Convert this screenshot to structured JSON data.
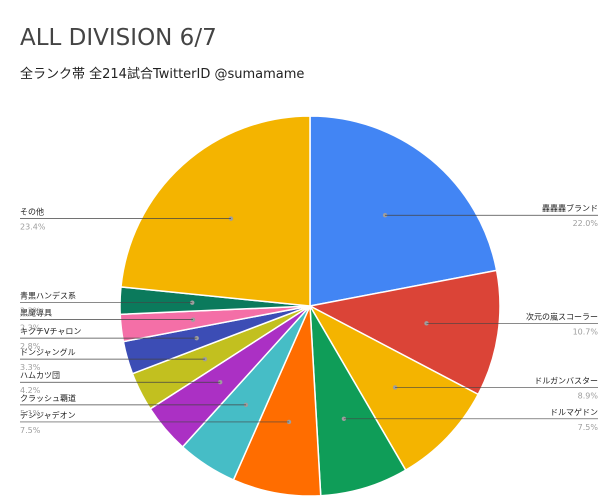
{
  "chart_data": {
    "type": "pie",
    "title": "ALL DIVISION 6/7",
    "subtitle": "全ランク帯 全214試合TwitterID @sumamame",
    "slices": [
      {
        "label": "轟轟轟ブランド",
        "value": 22.0,
        "value_label": "22.0%",
        "color": "#4285f4"
      },
      {
        "label": "次元の嵐スコーラー",
        "value": 10.7,
        "value_label": "10.7%",
        "color": "#db4437"
      },
      {
        "label": "ドルガンバスター",
        "value": 8.9,
        "value_label": "8.9%",
        "color": "#f4b400"
      },
      {
        "label": "ドルマゲドン",
        "value": 7.5,
        "value_label": "7.5%",
        "color": "#0f9d58"
      },
      {
        "label": "デンジャデオン",
        "value": 7.5,
        "value_label": "7.5%",
        "color": "#ff6d00"
      },
      {
        "label": "クラッシュ覇道",
        "value": 5.1,
        "value_label": "5.1%",
        "color": "#46bdc6"
      },
      {
        "label": "ハムカツ団",
        "value": 4.2,
        "value_label": "4.2%",
        "color": "#ab30c4"
      },
      {
        "label": "ドンジャングル",
        "value": 3.3,
        "value_label": "3.3%",
        "color": "#c2c01f"
      },
      {
        "label": "キクチVチャロン",
        "value": 2.8,
        "value_label": "2.8%",
        "color": "#3c4db5"
      },
      {
        "label": "黒魔導具",
        "value": 2.3,
        "value_label": "2.3%",
        "color": "#f46fa7"
      },
      {
        "label": "青黒ハンデス系",
        "value": 2.3,
        "value_label": "2.3%",
        "color": "#0b7a5c"
      },
      {
        "label": "その他",
        "value": 23.4,
        "value_label": "23.4%",
        "color": "#f4b400"
      }
    ]
  }
}
